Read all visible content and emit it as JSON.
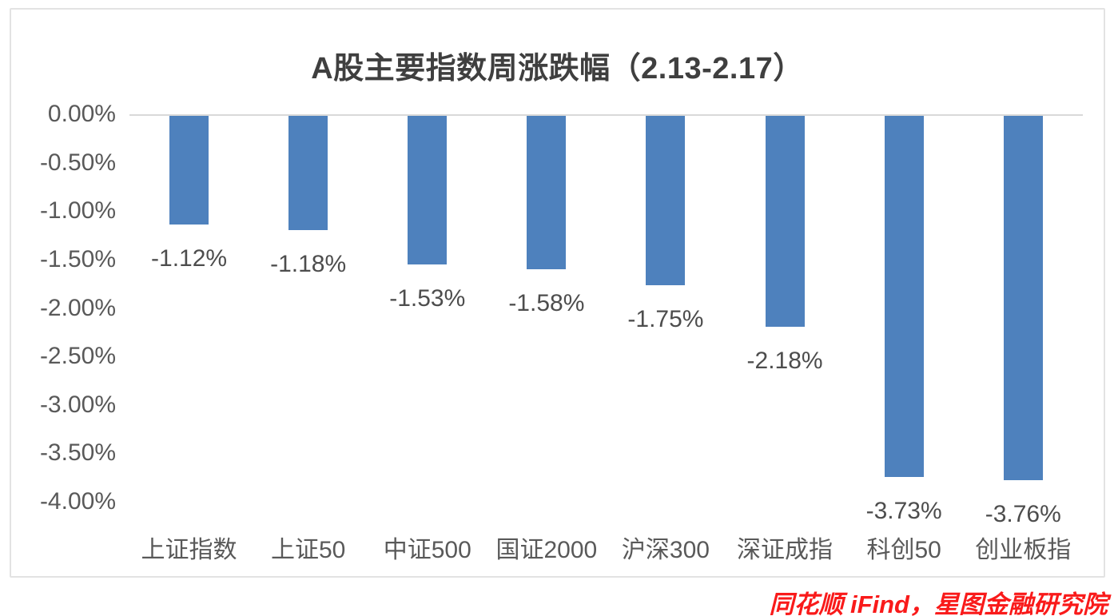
{
  "chart_data": {
    "type": "bar",
    "title": "A股主要指数周涨跌幅（2.13-2.17）",
    "categories": [
      "上证指数",
      "上证50",
      "中证500",
      "国证2000",
      "沪深300",
      "深证成指",
      "科创50",
      "创业板指"
    ],
    "values": [
      -1.12,
      -1.18,
      -1.53,
      -1.58,
      -1.75,
      -2.18,
      -3.73,
      -3.76
    ],
    "data_labels": [
      "-1.12%",
      "-1.18%",
      "-1.53%",
      "-1.58%",
      "-1.75%",
      "-2.18%",
      "-3.73%",
      "-3.76%"
    ],
    "y_ticks": [
      "0.00%",
      "-0.50%",
      "-1.00%",
      "-1.50%",
      "-2.00%",
      "-2.50%",
      "-3.00%",
      "-3.50%",
      "-4.00%"
    ],
    "ylim": [
      -4,
      0
    ],
    "xlabel": "",
    "ylabel": "",
    "grid": false,
    "legend": false,
    "bar_color": "#4E81BD",
    "axis_line_color": "#D9D9D9",
    "tick_text_color": "#595959",
    "title_color": "#3F3F3F",
    "source_text": "同花顺 iFind，星图金融研究院",
    "source_color": "#F91A1A"
  }
}
